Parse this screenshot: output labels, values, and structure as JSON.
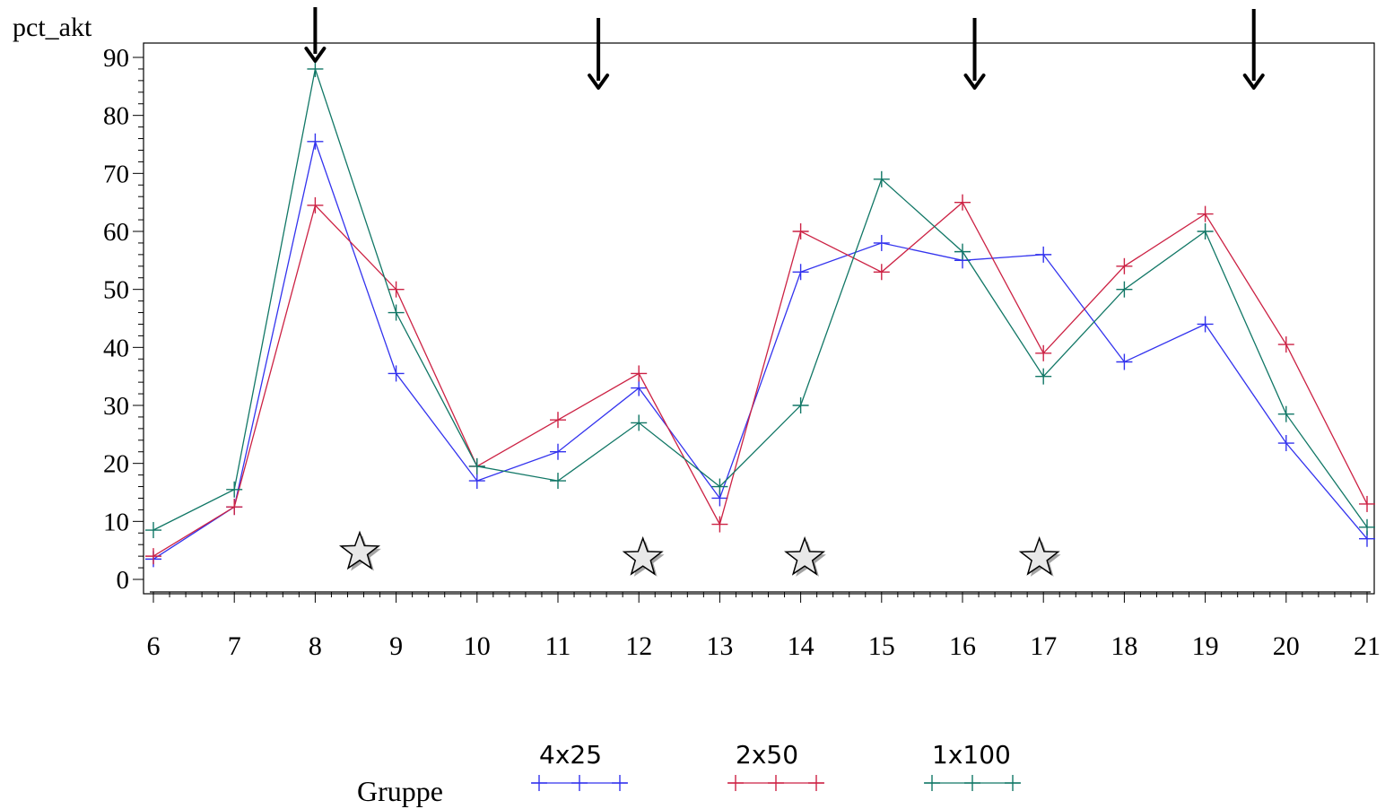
{
  "chart_data": {
    "type": "line",
    "ylabel": "pct_akt",
    "xlabel": "",
    "x": [
      6,
      7,
      8,
      9,
      10,
      11,
      12,
      13,
      14,
      15,
      16,
      17,
      18,
      19,
      20,
      21
    ],
    "xlim": [
      6,
      21
    ],
    "ylim": [
      0,
      90
    ],
    "x_ticks": [
      "6",
      "7",
      "8",
      "9",
      "10",
      "11",
      "12",
      "13",
      "14",
      "15",
      "16",
      "17",
      "18",
      "19",
      "20",
      "21"
    ],
    "y_ticks": [
      "0",
      "10",
      "20",
      "30",
      "40",
      "50",
      "60",
      "70",
      "80",
      "90"
    ],
    "y_tick_values": [
      0,
      10,
      20,
      30,
      40,
      50,
      60,
      70,
      80,
      90
    ],
    "grid": false,
    "marker": "plus",
    "series": [
      {
        "name": "4x25",
        "color": "#3333ee",
        "values": [
          3.5,
          12.5,
          75.5,
          35.5,
          17,
          22,
          33,
          14,
          53,
          58,
          55,
          56,
          37.5,
          44,
          23.5,
          7
        ]
      },
      {
        "name": "2x50",
        "color": "#cc2244",
        "values": [
          4,
          12.5,
          64.5,
          50,
          19.5,
          27.5,
          35.5,
          9.5,
          60,
          53,
          65,
          39,
          54,
          63,
          40.5,
          13
        ]
      },
      {
        "name": "1x100",
        "color": "#117766",
        "values": [
          8.5,
          15.5,
          88,
          46,
          19.5,
          17,
          27,
          16,
          30,
          69,
          56.5,
          35,
          50,
          60,
          28.5,
          9
        ]
      }
    ],
    "legend": {
      "title": "Gruppe",
      "position": "bottom"
    },
    "annotations": {
      "arrows_at_x": [
        8,
        11.5,
        16.15,
        19.6
      ],
      "stars_at": [
        {
          "x": 8.55,
          "y": 5
        },
        {
          "x": 12.05,
          "y": 4
        },
        {
          "x": 14.05,
          "y": 4
        },
        {
          "x": 16.95,
          "y": 4
        }
      ]
    }
  }
}
